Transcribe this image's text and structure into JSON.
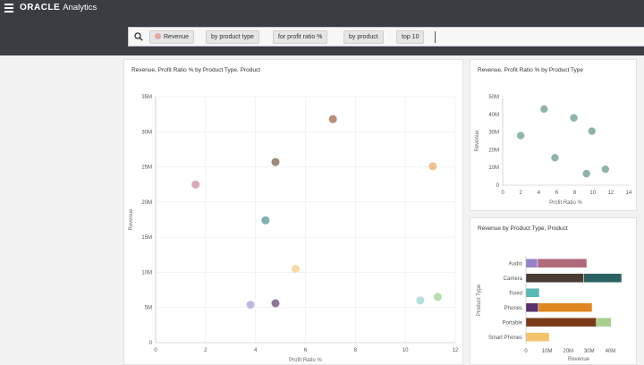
{
  "app": {
    "brand_oracle": "ORACLE",
    "brand_analytics": "Analytics"
  },
  "icons": {
    "menu": "hamburger-icon",
    "search": "search-icon"
  },
  "search": {
    "chips": [
      "Revenue",
      "by product type",
      "for profit ratio %",
      "by product",
      "top 10"
    ]
  },
  "colors": {
    "topbar": "#3a3d44",
    "revenue_dot": "#e8a7a7"
  },
  "chart_data": [
    {
      "type": "scatter",
      "title": "Revenue, Profit Ratio % by Product Type, Product",
      "xlabel": "Profit Ratio %",
      "ylabel": "Revenue",
      "xlim": [
        0,
        12
      ],
      "ylim": [
        0,
        35
      ],
      "xticks": [
        "0",
        "2",
        "4",
        "6",
        "8",
        "10",
        "12"
      ],
      "yticks": [
        "0",
        "5M",
        "10M",
        "15M",
        "20M",
        "25M",
        "30M",
        "35M"
      ],
      "grid": true,
      "points": [
        {
          "x": 1.6,
          "y": 22.5,
          "color": "#d9a8b4"
        },
        {
          "x": 3.8,
          "y": 5.4,
          "color": "#c3b6e0"
        },
        {
          "x": 4.4,
          "y": 17.4,
          "color": "#7fb0ad"
        },
        {
          "x": 4.8,
          "y": 25.7,
          "color": "#9b8c7b"
        },
        {
          "x": 4.8,
          "y": 5.6,
          "color": "#8d7895"
        },
        {
          "x": 5.6,
          "y": 10.5,
          "color": "#f5d9a8"
        },
        {
          "x": 7.1,
          "y": 31.8,
          "color": "#b98d79"
        },
        {
          "x": 10.6,
          "y": 6.0,
          "color": "#b2e0de"
        },
        {
          "x": 11.1,
          "y": 25.1,
          "color": "#f3c08c"
        },
        {
          "x": 11.3,
          "y": 6.5,
          "color": "#b7dfae"
        }
      ]
    },
    {
      "type": "scatter",
      "title": "Revenue, Profit Ratio % by Product Type",
      "xlabel": "Profit Ratio %",
      "ylabel": "Revenue",
      "xlim": [
        0,
        14
      ],
      "ylim": [
        0,
        50
      ],
      "xticks": [
        "0",
        "2",
        "4",
        "6",
        "8",
        "10",
        "12",
        "14"
      ],
      "yticks": [
        "0",
        "10M",
        "20M",
        "30M",
        "40M",
        "50M"
      ],
      "grid": false,
      "points": [
        {
          "x": 2.0,
          "y": 28.0,
          "color": "#8fb3ad"
        },
        {
          "x": 4.6,
          "y": 43.0,
          "color": "#8fb3ad"
        },
        {
          "x": 5.8,
          "y": 15.5,
          "color": "#8fb3ad"
        },
        {
          "x": 7.9,
          "y": 38.0,
          "color": "#8fb3ad"
        },
        {
          "x": 9.3,
          "y": 6.5,
          "color": "#8fb3ad"
        },
        {
          "x": 9.9,
          "y": 30.5,
          "color": "#8fb3ad"
        },
        {
          "x": 11.4,
          "y": 9.0,
          "color": "#8fb3ad"
        }
      ]
    },
    {
      "type": "bar",
      "orientation": "horizontal",
      "stacked": true,
      "title": "Revenue by Product Type, Product",
      "xlabel": "Revenue",
      "ylabel": "Product Type",
      "xlim": [
        0,
        50
      ],
      "xticks": [
        "0",
        "10M",
        "20M",
        "30M",
        "40M"
      ],
      "categories": [
        "Audio",
        "Camera",
        "Fixed",
        "Phones",
        "Portable",
        "Smart Phones"
      ],
      "bars": [
        {
          "category": "Audio",
          "segments": [
            {
              "value": 5.6,
              "color": "#9a82c9"
            },
            {
              "value": 23.4,
              "color": "#b06a7c"
            }
          ]
        },
        {
          "category": "Camera",
          "segments": [
            {
              "value": 27.5,
              "color": "#4a3b33"
            },
            {
              "value": 18.0,
              "color": "#2e6163"
            }
          ]
        },
        {
          "category": "Fixed",
          "segments": [
            {
              "value": 6.5,
              "color": "#5ab7b7"
            }
          ]
        },
        {
          "category": "Phones",
          "segments": [
            {
              "value": 6.0,
              "color": "#5a2f6b"
            },
            {
              "value": 25.5,
              "color": "#e0861f"
            }
          ]
        },
        {
          "category": "Portable",
          "segments": [
            {
              "value": 33.5,
              "color": "#7a3a1a"
            },
            {
              "value": 7.0,
              "color": "#a9d08e"
            }
          ]
        },
        {
          "category": "Smart Phones",
          "segments": [
            {
              "value": 11.2,
              "color": "#f4c36d"
            }
          ]
        }
      ]
    }
  ]
}
